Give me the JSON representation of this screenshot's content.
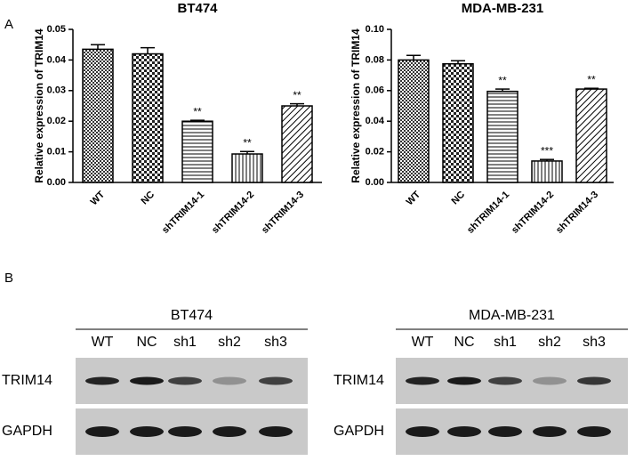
{
  "chart_data": [
    {
      "type": "bar",
      "title": "BT474",
      "ylabel": "Relative expression of TRIM14",
      "categories": [
        "WT",
        "NC",
        "shTRIM14-1",
        "shTRIM14-2",
        "shTRIM14-3"
      ],
      "values": [
        0.0435,
        0.042,
        0.02,
        0.0093,
        0.025
      ],
      "errors": [
        0.0015,
        0.002,
        0.0003,
        0.0008,
        0.0007
      ],
      "annotations": [
        null,
        null,
        "**",
        "**",
        "**"
      ],
      "ylim": [
        0,
        0.05
      ],
      "yticks": [
        {
          "value": 0,
          "label": "0.00"
        },
        0.01,
        0.02,
        0.03,
        0.04,
        0.05
      ]
    },
    {
      "type": "bar",
      "title": "MDA-MB-231",
      "ylabel": "Relative expression of TRIM14",
      "categories": [
        "WT",
        "NC",
        "shTRIM14-1",
        "shTRIM14-2",
        "shTRIM14-3"
      ],
      "values": [
        0.08,
        0.0775,
        0.0595,
        0.014,
        0.061
      ],
      "errors": [
        0.003,
        0.002,
        0.0015,
        0.001,
        0.0005
      ],
      "annotations": [
        null,
        null,
        "**",
        "***",
        "**"
      ],
      "ylim": [
        0,
        0.1
      ],
      "yticks": [
        {
          "value": 0,
          "label": "0.00"
        },
        0.02,
        0.04,
        0.06,
        0.08,
        {
          "value": 0.1,
          "label": "0.10"
        }
      ]
    }
  ],
  "panel_labels": [
    "A",
    "B"
  ],
  "blots": [
    {
      "title": "BT474",
      "lanes": [
        "WT",
        "NC",
        "sh1",
        "sh2",
        "sh3"
      ],
      "rows": [
        "TRIM14",
        "GAPDH"
      ]
    },
    {
      "title": "MDA-MB-231",
      "lanes": [
        "WT",
        "NC",
        "sh1",
        "sh2",
        "sh3"
      ],
      "rows": [
        "TRIM14",
        "GAPDH"
      ]
    }
  ]
}
